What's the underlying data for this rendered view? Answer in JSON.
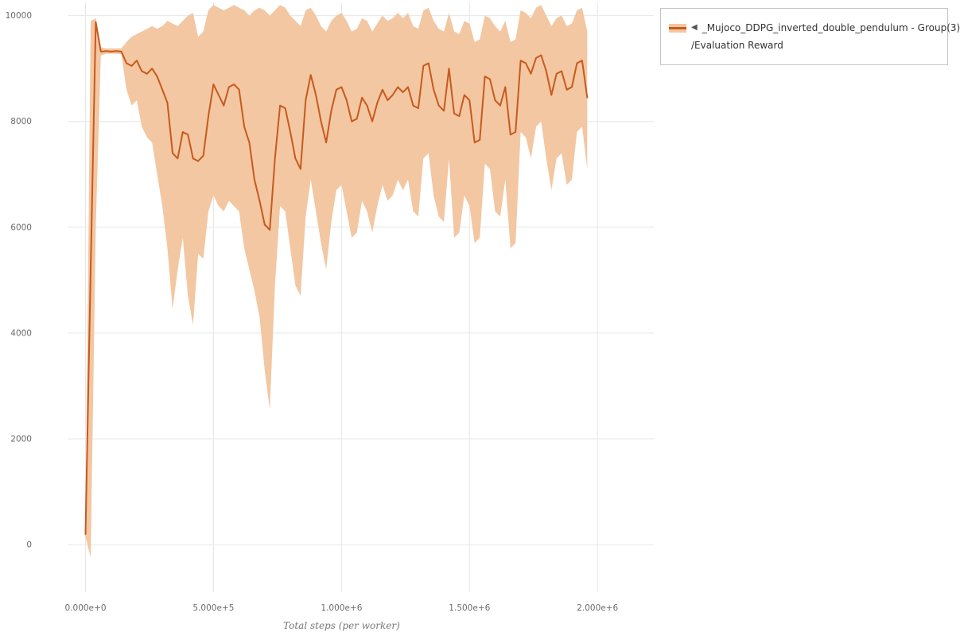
{
  "legend": {
    "marker": "◀",
    "series_title": "_Mujoco_DDPG_inverted_double_pendulum - Group(3)",
    "metric": "/Evaluation Reward"
  },
  "chart_data": {
    "type": "line",
    "title": "",
    "xlabel": "Total steps (per worker)",
    "ylabel": "",
    "grid": true,
    "legend_position": "top-right-outside",
    "xlim": [
      -70000,
      2220000
    ],
    "ylim": [
      -900,
      10250
    ],
    "x_ticks": {
      "values": [
        0,
        500000,
        1000000,
        1500000,
        2000000
      ],
      "labels": [
        "0.000e+0",
        "5.000e+5",
        "1.000e+6",
        "1.500e+6",
        "2.000e+6"
      ]
    },
    "y_ticks": {
      "values": [
        0,
        2000,
        4000,
        6000,
        8000,
        10000
      ],
      "labels": [
        "0",
        "2000",
        "4000",
        "6000",
        "8000",
        "10000"
      ]
    },
    "series": [
      {
        "name": "_Mujoco_DDPG_inverted_double_pendulum - Group(3) /Evaluation Reward",
        "x_start": 0,
        "x_step": 20000,
        "mean": [
          200,
          5200,
          9880,
          9320,
          9330,
          9320,
          9330,
          9320,
          9100,
          9050,
          9150,
          8950,
          8900,
          9000,
          8850,
          8600,
          8350,
          7400,
          7300,
          7800,
          7750,
          7300,
          7250,
          7350,
          8100,
          8700,
          8500,
          8300,
          8650,
          8700,
          8600,
          7900,
          7600,
          6900,
          6500,
          6050,
          5950,
          7300,
          8300,
          8250,
          7800,
          7300,
          7100,
          8400,
          8880,
          8500,
          8000,
          7600,
          8200,
          8600,
          8650,
          8400,
          8000,
          8050,
          8450,
          8300,
          8000,
          8350,
          8600,
          8400,
          8500,
          8650,
          8550,
          8650,
          8300,
          8250,
          9050,
          9100,
          8600,
          8300,
          8200,
          9000,
          8150,
          8100,
          8500,
          8400,
          7600,
          7650,
          8850,
          8800,
          8400,
          8300,
          8650,
          7750,
          7800,
          9150,
          9100,
          8900,
          9200,
          9250,
          8950,
          8500,
          8900,
          8950,
          8600,
          8650,
          9100,
          9150,
          8450
        ],
        "band_low": [
          150,
          -250,
          6000,
          9250,
          9280,
          9280,
          9280,
          9270,
          8600,
          8300,
          8400,
          7900,
          7700,
          7600,
          7000,
          6400,
          5600,
          4450,
          5200,
          5800,
          4700,
          4150,
          5500,
          5400,
          6300,
          6600,
          6400,
          6300,
          6500,
          6400,
          6300,
          5600,
          5200,
          4800,
          4300,
          3300,
          2550,
          4900,
          6400,
          6300,
          5600,
          4900,
          4700,
          6200,
          6900,
          6300,
          5700,
          5200,
          6100,
          6700,
          6800,
          6300,
          5800,
          5900,
          6500,
          6300,
          5900,
          6400,
          6800,
          6500,
          6600,
          6900,
          6700,
          6900,
          6300,
          6200,
          7300,
          7400,
          6600,
          6200,
          6100,
          7300,
          5800,
          5900,
          6600,
          6400,
          5700,
          5800,
          7200,
          7100,
          6300,
          6200,
          6900,
          5600,
          5700,
          7800,
          7700,
          7300,
          7900,
          8000,
          7300,
          6700,
          7300,
          7400,
          6800,
          6900,
          7800,
          7900,
          7100
        ],
        "band_high": [
          250,
          9900,
          9950,
          9400,
          9380,
          9380,
          9380,
          9380,
          9500,
          9600,
          9650,
          9700,
          9750,
          9800,
          9750,
          9800,
          9900,
          9850,
          9800,
          9900,
          10000,
          10050,
          9600,
          9700,
          10100,
          10200,
          10150,
          10100,
          10150,
          10200,
          10150,
          10100,
          10000,
          10100,
          10150,
          10100,
          10000,
          10100,
          10200,
          10150,
          10000,
          9900,
          9800,
          10100,
          10150,
          10000,
          9800,
          9700,
          9900,
          10000,
          10050,
          9900,
          9700,
          9750,
          9950,
          9900,
          9700,
          9850,
          10000,
          9900,
          9950,
          10050,
          9950,
          10050,
          9800,
          9750,
          10100,
          10150,
          9900,
          9750,
          9700,
          10050,
          9700,
          9650,
          9900,
          9850,
          9500,
          9550,
          10000,
          9950,
          9800,
          9700,
          9900,
          9500,
          9550,
          10100,
          10050,
          9950,
          10150,
          10200,
          10000,
          9800,
          9950,
          10000,
          9800,
          9850,
          10100,
          10150,
          9700
        ]
      }
    ],
    "colors": {
      "line": "#c9591c",
      "band": "#f2c7a2",
      "grid": "#e6e6e6",
      "tick_text": "#6b6b6b",
      "axis_title": "#777777",
      "legend_marker": "#555555"
    }
  }
}
